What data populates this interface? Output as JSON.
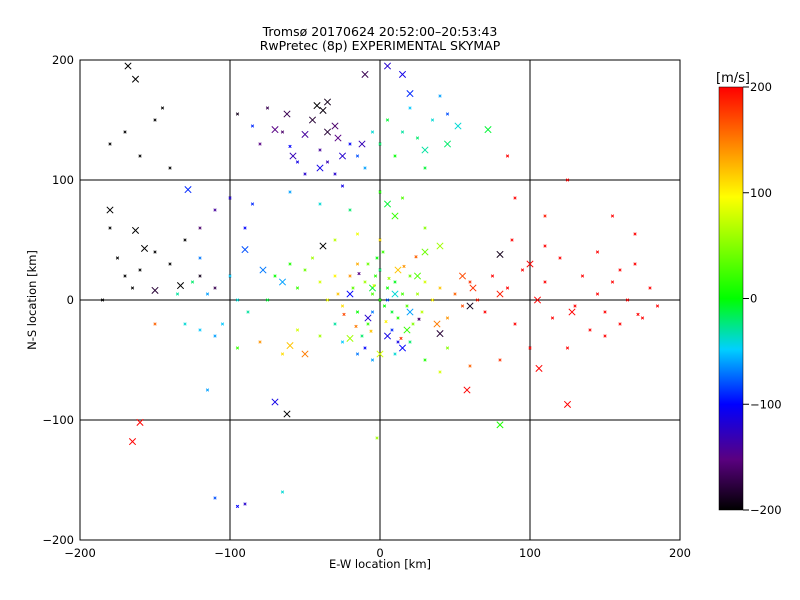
{
  "chart_data": {
    "type": "scatter",
    "title_line1": "Tromsø 20170624 20:52:00–20:53:43",
    "title_line2": "RwPretec (8p) EXPERIMENTAL SKYMAP",
    "xlabel": "E-W location [km]",
    "ylabel": "N-S location [km]",
    "xlim": [
      -200,
      200
    ],
    "ylim": [
      -200,
      200
    ],
    "x_ticks": [
      -200,
      -100,
      0,
      100,
      200
    ],
    "y_ticks": [
      -200,
      -100,
      0,
      100,
      200
    ],
    "grid": true,
    "colorbar": {
      "label": "[m/s]",
      "min": -200,
      "max": 200,
      "ticks": [
        -200,
        -100,
        0,
        100,
        200
      ],
      "colormap": "rainbow (black-purple-blue-cyan-green-yellow-red)"
    },
    "series": [
      {
        "marker": "cross-large",
        "points": [
          [
            -168,
            195,
            -200
          ],
          [
            -163,
            184,
            -200
          ],
          [
            -180,
            75,
            -200
          ],
          [
            -163,
            58,
            -200
          ],
          [
            -157,
            43,
            -200
          ],
          [
            -133,
            12,
            -200
          ],
          [
            -150,
            8,
            -180
          ],
          [
            -42,
            162,
            -200
          ],
          [
            -35,
            165,
            -190
          ],
          [
            -38,
            158,
            -195
          ],
          [
            -45,
            150,
            -180
          ],
          [
            -30,
            145,
            -160
          ],
          [
            -25,
            120,
            -120
          ],
          [
            -40,
            110,
            -110
          ],
          [
            -28,
            135,
            -150
          ],
          [
            -12,
            130,
            -130
          ],
          [
            -10,
            188,
            -170
          ],
          [
            5,
            195,
            -120
          ],
          [
            15,
            188,
            -110
          ],
          [
            20,
            172,
            -90
          ],
          [
            -128,
            92,
            -90
          ],
          [
            -90,
            42,
            -80
          ],
          [
            -78,
            25,
            -70
          ],
          [
            -65,
            15,
            -60
          ],
          [
            -38,
            45,
            -200
          ],
          [
            -20,
            5,
            -100
          ],
          [
            -8,
            -15,
            -120
          ],
          [
            5,
            -30,
            -110
          ],
          [
            15,
            -40,
            -100
          ],
          [
            -70,
            -85,
            -110
          ],
          [
            -62,
            -95,
            -200
          ],
          [
            20,
            -10,
            -60
          ],
          [
            10,
            5,
            -40
          ],
          [
            -5,
            10,
            -10
          ],
          [
            18,
            -25,
            20
          ],
          [
            25,
            20,
            30
          ],
          [
            30,
            40,
            40
          ],
          [
            0,
            -45,
            80
          ],
          [
            -20,
            -32,
            60
          ],
          [
            -60,
            -38,
            120
          ],
          [
            -50,
            -45,
            150
          ],
          [
            -160,
            -102,
            200
          ],
          [
            -165,
            -118,
            200
          ],
          [
            12,
            25,
            120
          ],
          [
            38,
            -20,
            150
          ],
          [
            55,
            20,
            170
          ],
          [
            62,
            10,
            180
          ],
          [
            80,
            5,
            190
          ],
          [
            100,
            30,
            200
          ],
          [
            105,
            0,
            200
          ],
          [
            128,
            -10,
            200
          ],
          [
            125,
            -87,
            200
          ],
          [
            106,
            -57,
            200
          ],
          [
            58,
            -75,
            200
          ],
          [
            80,
            -104,
            10
          ],
          [
            72,
            142,
            -10
          ],
          [
            52,
            145,
            -40
          ],
          [
            45,
            130,
            -20
          ],
          [
            30,
            125,
            -30
          ],
          [
            80,
            38,
            -190
          ],
          [
            60,
            -5,
            -190
          ],
          [
            40,
            -28,
            -180
          ],
          [
            -35,
            140,
            -180
          ],
          [
            -50,
            138,
            -140
          ],
          [
            -58,
            120,
            -130
          ],
          [
            -62,
            155,
            -170
          ],
          [
            -70,
            142,
            -150
          ],
          [
            5,
            80,
            -10
          ],
          [
            10,
            70,
            20
          ],
          [
            40,
            45,
            60
          ]
        ]
      },
      {
        "marker": "cross-small",
        "points": [
          [
            -180,
            130,
            -200
          ],
          [
            -170,
            140,
            -200
          ],
          [
            -160,
            120,
            -200
          ],
          [
            -150,
            150,
            -200
          ],
          [
            -140,
            110,
            -200
          ],
          [
            -145,
            160,
            -200
          ],
          [
            -175,
            35,
            -200
          ],
          [
            -170,
            20,
            -200
          ],
          [
            -160,
            25,
            -200
          ],
          [
            -150,
            40,
            -200
          ],
          [
            -140,
            30,
            -200
          ],
          [
            -130,
            50,
            -200
          ],
          [
            -120,
            20,
            -190
          ],
          [
            -110,
            10,
            -170
          ],
          [
            -185,
            0,
            -200
          ],
          [
            -180,
            60,
            -200
          ],
          [
            -165,
            10,
            -200
          ],
          [
            -120,
            60,
            -160
          ],
          [
            -110,
            75,
            -140
          ],
          [
            -100,
            85,
            -120
          ],
          [
            -90,
            60,
            -100
          ],
          [
            -85,
            80,
            -90
          ],
          [
            -120,
            35,
            -70
          ],
          [
            -115,
            5,
            -60
          ],
          [
            -100,
            20,
            -50
          ],
          [
            -95,
            0,
            -40
          ],
          [
            -88,
            -10,
            -30
          ],
          [
            -105,
            -20,
            -50
          ],
          [
            -110,
            -30,
            -60
          ],
          [
            -130,
            -20,
            -40
          ],
          [
            -135,
            5,
            -30
          ],
          [
            -125,
            15,
            -20
          ],
          [
            -75,
            0,
            -10
          ],
          [
            -70,
            20,
            0
          ],
          [
            -60,
            30,
            10
          ],
          [
            -55,
            10,
            20
          ],
          [
            -50,
            25,
            40
          ],
          [
            -45,
            35,
            60
          ],
          [
            -40,
            15,
            80
          ],
          [
            -35,
            0,
            90
          ],
          [
            -30,
            20,
            100
          ],
          [
            -28,
            5,
            120
          ],
          [
            -25,
            -5,
            110
          ],
          [
            -20,
            20,
            140
          ],
          [
            -15,
            30,
            130
          ],
          [
            -10,
            15,
            60
          ],
          [
            -5,
            5,
            30
          ],
          [
            0,
            0,
            10
          ],
          [
            3,
            -5,
            0
          ],
          [
            5,
            10,
            5
          ],
          [
            8,
            -10,
            -10
          ],
          [
            10,
            15,
            -5
          ],
          [
            12,
            -15,
            10
          ],
          [
            -3,
            20,
            15
          ],
          [
            -8,
            -20,
            20
          ],
          [
            15,
            5,
            25
          ],
          [
            18,
            -5,
            30
          ],
          [
            20,
            20,
            40
          ],
          [
            -12,
            -30,
            -20
          ],
          [
            -15,
            -10,
            0
          ],
          [
            -18,
            10,
            35
          ],
          [
            22,
            -20,
            50
          ],
          [
            25,
            5,
            60
          ],
          [
            28,
            -10,
            70
          ],
          [
            30,
            15,
            80
          ],
          [
            35,
            0,
            100
          ],
          [
            40,
            10,
            120
          ],
          [
            45,
            -15,
            140
          ],
          [
            50,
            5,
            160
          ],
          [
            55,
            -5,
            170
          ],
          [
            60,
            15,
            180
          ],
          [
            65,
            0,
            190
          ],
          [
            70,
            -10,
            200
          ],
          [
            75,
            20,
            200
          ],
          [
            85,
            10,
            200
          ],
          [
            90,
            -20,
            200
          ],
          [
            95,
            25,
            200
          ],
          [
            110,
            15,
            200
          ],
          [
            115,
            -15,
            200
          ],
          [
            120,
            35,
            200
          ],
          [
            130,
            -5,
            200
          ],
          [
            135,
            20,
            200
          ],
          [
            140,
            -25,
            200
          ],
          [
            145,
            5,
            200
          ],
          [
            150,
            -10,
            200
          ],
          [
            155,
            15,
            200
          ],
          [
            160,
            -20,
            200
          ],
          [
            165,
            0,
            200
          ],
          [
            170,
            30,
            200
          ],
          [
            175,
            -15,
            200
          ],
          [
            180,
            10,
            200
          ],
          [
            185,
            -5,
            200
          ],
          [
            145,
            40,
            200
          ],
          [
            150,
            -30,
            200
          ],
          [
            125,
            -40,
            200
          ],
          [
            100,
            -40,
            200
          ],
          [
            110,
            45,
            200
          ],
          [
            88,
            50,
            200
          ],
          [
            160,
            25,
            200
          ],
          [
            172,
            -12,
            200
          ],
          [
            -40,
            125,
            -140
          ],
          [
            -35,
            115,
            -130
          ],
          [
            -30,
            105,
            -120
          ],
          [
            -25,
            95,
            -110
          ],
          [
            -20,
            130,
            -100
          ],
          [
            -15,
            120,
            -80
          ],
          [
            -10,
            110,
            -60
          ],
          [
            -5,
            140,
            -40
          ],
          [
            0,
            130,
            -20
          ],
          [
            5,
            150,
            -10
          ],
          [
            10,
            120,
            0
          ],
          [
            15,
            140,
            -30
          ],
          [
            20,
            160,
            -50
          ],
          [
            25,
            135,
            -20
          ],
          [
            30,
            110,
            -10
          ],
          [
            35,
            150,
            -40
          ],
          [
            40,
            170,
            -60
          ],
          [
            45,
            155,
            -80
          ],
          [
            -50,
            105,
            -120
          ],
          [
            -55,
            115,
            -110
          ],
          [
            -60,
            128,
            -100
          ],
          [
            -65,
            140,
            -160
          ],
          [
            -75,
            160,
            -170
          ],
          [
            -80,
            130,
            -150
          ],
          [
            -85,
            145,
            -90
          ],
          [
            -95,
            155,
            -190
          ],
          [
            -60,
            90,
            -60
          ],
          [
            -40,
            80,
            -40
          ],
          [
            -20,
            75,
            -20
          ],
          [
            0,
            90,
            10
          ],
          [
            15,
            85,
            30
          ],
          [
            30,
            60,
            50
          ],
          [
            -30,
            50,
            70
          ],
          [
            -15,
            55,
            90
          ],
          [
            0,
            50,
            110
          ],
          [
            -30,
            -20,
            -30
          ],
          [
            -25,
            -35,
            -50
          ],
          [
            -15,
            -45,
            -70
          ],
          [
            -5,
            -50,
            -60
          ],
          [
            10,
            -45,
            -40
          ],
          [
            20,
            -35,
            -20
          ],
          [
            30,
            -50,
            10
          ],
          [
            45,
            -40,
            50
          ],
          [
            -40,
            -30,
            60
          ],
          [
            -55,
            -25,
            80
          ],
          [
            -65,
            -45,
            110
          ],
          [
            -80,
            -35,
            140
          ],
          [
            -95,
            -40,
            20
          ],
          [
            -120,
            -25,
            -50
          ],
          [
            -150,
            -20,
            160
          ],
          [
            -115,
            -75,
            -60
          ],
          [
            -90,
            -170,
            -120
          ],
          [
            -95,
            -172,
            -100
          ],
          [
            -110,
            -165,
            -80
          ],
          [
            -65,
            -160,
            -40
          ],
          [
            -2,
            -115,
            60
          ],
          [
            40,
            -60,
            80
          ],
          [
            60,
            -55,
            160
          ],
          [
            80,
            -50,
            180
          ],
          [
            90,
            85,
            200
          ],
          [
            170,
            55,
            200
          ],
          [
            155,
            70,
            200
          ],
          [
            125,
            100,
            200
          ],
          [
            85,
            120,
            200
          ],
          [
            110,
            70,
            190
          ],
          [
            5,
            0,
            -80
          ],
          [
            -5,
            -10,
            -70
          ],
          [
            8,
            -25,
            -90
          ],
          [
            -10,
            -40,
            -100
          ],
          [
            12,
            -35,
            -110
          ],
          [
            0,
            25,
            -20
          ],
          [
            -2,
            35,
            0
          ],
          [
            2,
            40,
            20
          ],
          [
            -8,
            30,
            40
          ],
          [
            6,
            18,
            60
          ],
          [
            -4,
            12,
            80
          ],
          [
            4,
            -18,
            100
          ],
          [
            -6,
            -26,
            120
          ],
          [
            16,
            28,
            140
          ],
          [
            -16,
            -22,
            150
          ],
          [
            24,
            36,
            160
          ],
          [
            -24,
            -12,
            170
          ],
          [
            14,
            -32,
            180
          ],
          [
            -14,
            22,
            -150
          ],
          [
            26,
            -16,
            -160
          ]
        ]
      }
    ]
  }
}
